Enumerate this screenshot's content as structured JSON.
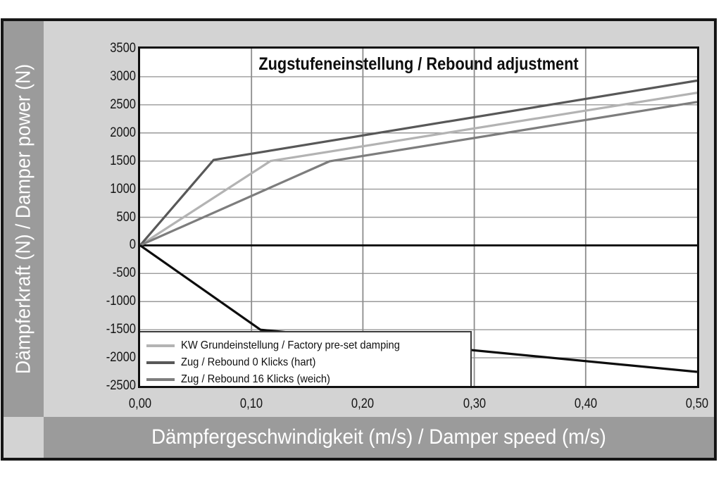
{
  "chart_data": {
    "type": "line",
    "title": "Zugstufeneinstellung / Rebound adjustment",
    "xlabel": "Dämpfergeschwindigkeit (m/s) / Damper speed (m/s)",
    "ylabel": "Dämpferkraft (N) / Damper power (N)",
    "xlim": [
      0,
      0.5
    ],
    "ylim": [
      -2500,
      3500
    ],
    "grid": true,
    "legend_position": "inside-bottom-left",
    "x_ticks": [
      {
        "v": 0.0,
        "label": "0,00"
      },
      {
        "v": 0.1,
        "label": "0,10"
      },
      {
        "v": 0.2,
        "label": "0,20"
      },
      {
        "v": 0.3,
        "label": "0,30"
      },
      {
        "v": 0.4,
        "label": "0,40"
      },
      {
        "v": 0.5,
        "label": "0,50"
      }
    ],
    "y_ticks": [
      {
        "v": 3500,
        "label": "3500"
      },
      {
        "v": 3000,
        "label": "3000"
      },
      {
        "v": 2500,
        "label": "2500"
      },
      {
        "v": 2000,
        "label": "2000"
      },
      {
        "v": 1500,
        "label": "1500"
      },
      {
        "v": 1000,
        "label": "1000"
      },
      {
        "v": 500,
        "label": "500"
      },
      {
        "v": 0,
        "label": "0"
      },
      {
        "v": -500,
        "label": "-500"
      },
      {
        "v": -1000,
        "label": "-1000"
      },
      {
        "v": -1500,
        "label": "-1500"
      },
      {
        "v": -2000,
        "label": "-2000"
      },
      {
        "v": -2500,
        "label": "-2500"
      }
    ],
    "series": [
      {
        "name": "KW Grundeinstellung / Factory pre-set damping",
        "color": "#b3b3b3",
        "in_legend": true,
        "points": [
          [
            0,
            0
          ],
          [
            0.117,
            1500
          ],
          [
            0.5,
            2715
          ]
        ]
      },
      {
        "name": "Zug / Rebound 0 Klicks (hart)",
        "color": "#585858",
        "in_legend": true,
        "points": [
          [
            0,
            0
          ],
          [
            0.066,
            1520
          ],
          [
            0.5,
            2930
          ]
        ]
      },
      {
        "name": "Zug / Rebound 16 Klicks (weich)",
        "color": "#7d7d7d",
        "in_legend": true,
        "points": [
          [
            0,
            0
          ],
          [
            0.17,
            1495
          ],
          [
            0.5,
            2550
          ]
        ]
      },
      {
        "name": "",
        "color": "#0d0d0d",
        "in_legend": false,
        "points": [
          [
            0,
            0
          ],
          [
            0.108,
            -1500
          ],
          [
            0.5,
            -2250
          ]
        ]
      }
    ],
    "colors": {
      "chart_bg": "#d3d3d3",
      "band_bg": "#9b9b9b",
      "band_text": "#ffffff",
      "plot_bg": "#ffffff",
      "grid": "#9a9a9a",
      "grid_vertical": "#8c8c8c",
      "zero_line": "#0d0d0d",
      "frame_border": "#161616"
    }
  }
}
